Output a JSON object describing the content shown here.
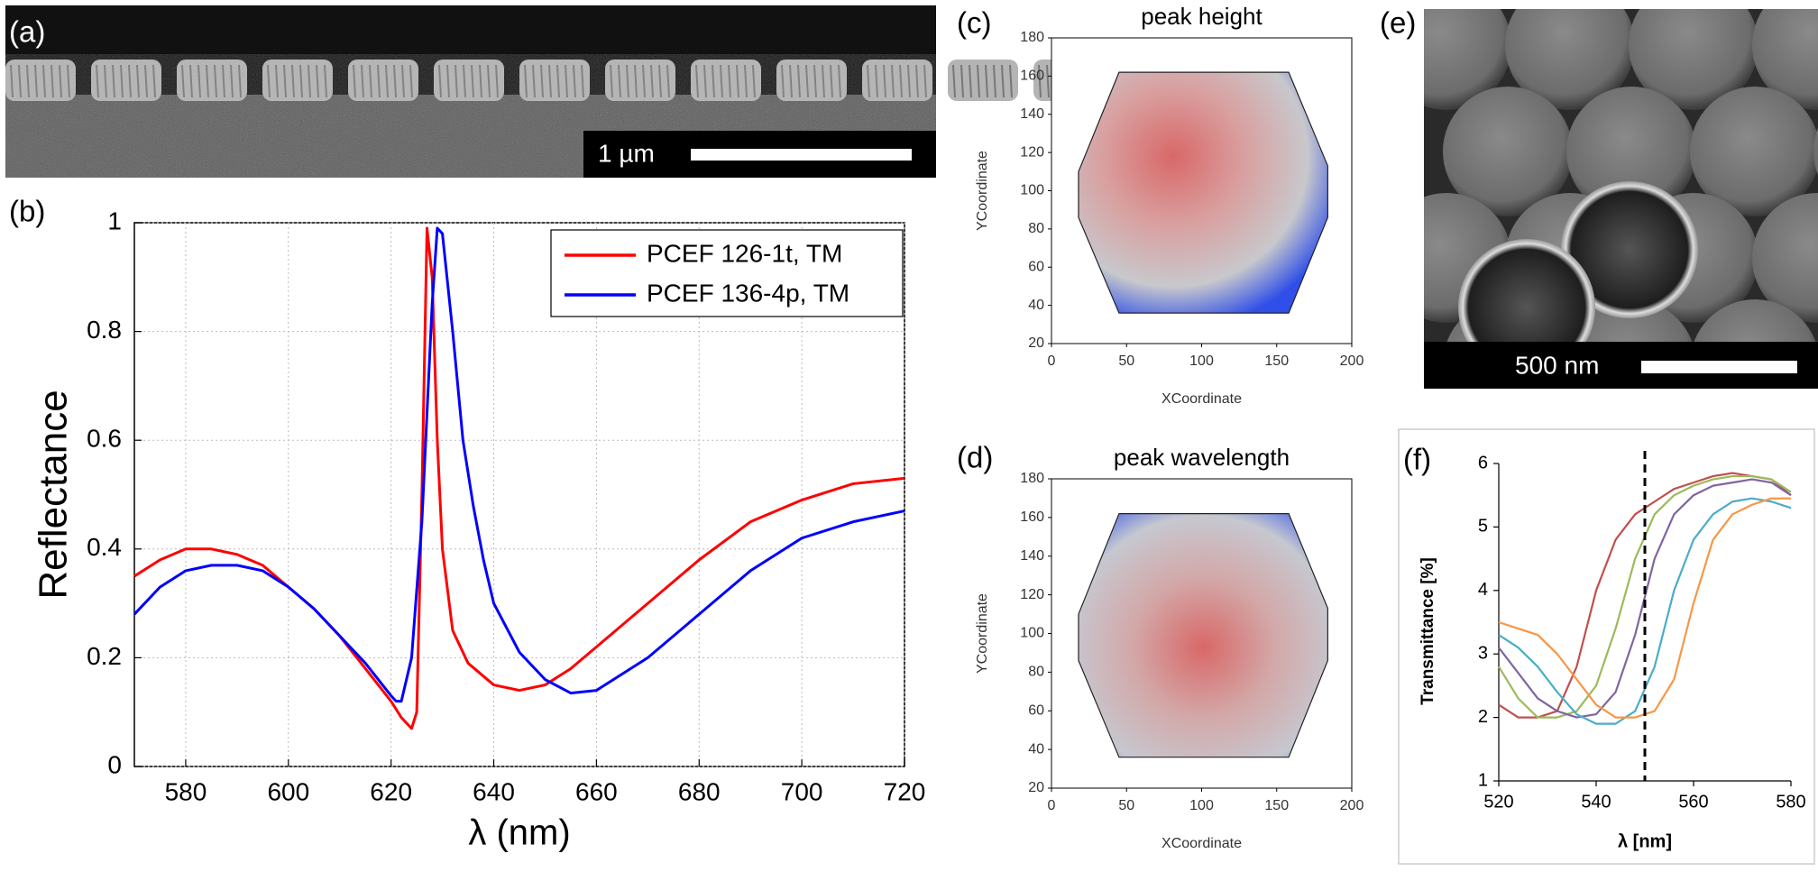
{
  "images": {
    "a": {
      "label": "(a)",
      "scale_bar": "1 µm"
    },
    "e": {
      "label": "(e)",
      "scale_bar": "500 nm"
    }
  },
  "chart_data": [
    {
      "type": "line",
      "panel_label": "(b)",
      "xlabel": "λ (nm)",
      "ylabel": "Reflectance",
      "xlim": [
        570,
        720
      ],
      "xticks": [
        580,
        600,
        620,
        640,
        660,
        680,
        700,
        720
      ],
      "ylim": [
        0,
        1
      ],
      "yticks": [
        0,
        0.2,
        0.4,
        0.6,
        0.8,
        1
      ],
      "grid": true,
      "legend": "upper right",
      "series": [
        {
          "name": "PCEF 126-1t, TM",
          "color": "#ff0000",
          "x": [
            570,
            575,
            580,
            585,
            590,
            595,
            600,
            605,
            610,
            615,
            620,
            622,
            624,
            625,
            626,
            627,
            628,
            629,
            630,
            632,
            635,
            640,
            645,
            650,
            655,
            660,
            670,
            680,
            690,
            700,
            710,
            720
          ],
          "values": [
            0.35,
            0.38,
            0.4,
            0.4,
            0.39,
            0.37,
            0.33,
            0.29,
            0.24,
            0.18,
            0.12,
            0.09,
            0.07,
            0.1,
            0.5,
            0.99,
            0.9,
            0.6,
            0.4,
            0.25,
            0.19,
            0.15,
            0.14,
            0.15,
            0.18,
            0.22,
            0.3,
            0.38,
            0.45,
            0.49,
            0.52,
            0.53
          ]
        },
        {
          "name": "PCEF 136-4p, TM",
          "color": "#0000ff",
          "x": [
            570,
            575,
            580,
            585,
            590,
            595,
            600,
            605,
            610,
            615,
            620,
            621,
            622,
            624,
            626,
            628,
            629,
            630,
            632,
            634,
            636,
            638,
            640,
            645,
            650,
            655,
            660,
            670,
            680,
            690,
            700,
            710,
            720
          ],
          "values": [
            0.28,
            0.33,
            0.36,
            0.37,
            0.37,
            0.36,
            0.33,
            0.29,
            0.24,
            0.19,
            0.13,
            0.12,
            0.12,
            0.2,
            0.45,
            0.85,
            0.99,
            0.98,
            0.8,
            0.6,
            0.48,
            0.38,
            0.3,
            0.21,
            0.16,
            0.135,
            0.14,
            0.2,
            0.28,
            0.36,
            0.42,
            0.45,
            0.47
          ]
        }
      ]
    },
    {
      "type": "heatmap",
      "panel_label": "(c)",
      "title": "peak height",
      "xlabel": "XCoordinate",
      "ylabel": "YCoordinate",
      "xlim": [
        0,
        200
      ],
      "xticks": [
        0,
        50,
        100,
        150,
        200
      ],
      "ylim": [
        20,
        180
      ],
      "yticks": [
        20,
        40,
        60,
        80,
        100,
        120,
        140,
        160,
        180
      ],
      "colormap": [
        "#d96868",
        "#d9a0a0",
        "#c8c8cc",
        "#2f4fe8"
      ],
      "outline": {
        "x": [
          45,
          158,
          184,
          184,
          158,
          45,
          18,
          18
        ],
        "y": [
          162,
          162,
          113,
          86,
          36,
          36,
          86,
          110
        ]
      }
    },
    {
      "type": "heatmap",
      "panel_label": "(d)",
      "title": "peak wavelength",
      "xlabel": "XCoordinate",
      "ylabel": "YCoordinate",
      "xlim": [
        0,
        200
      ],
      "xticks": [
        0,
        50,
        100,
        150,
        200
      ],
      "ylim": [
        20,
        180
      ],
      "yticks": [
        20,
        40,
        60,
        80,
        100,
        120,
        140,
        160,
        180
      ],
      "colormap": [
        "#d96868",
        "#d3a8a8",
        "#c6c8d0",
        "#2f4fe8"
      ],
      "outline": {
        "x": [
          45,
          158,
          184,
          184,
          158,
          45,
          18,
          18
        ],
        "y": [
          162,
          162,
          113,
          86,
          36,
          36,
          86,
          110
        ]
      }
    },
    {
      "type": "line",
      "panel_label": "(f)",
      "xlabel": "λ [nm]",
      "ylabel": "Transmittance [%]",
      "xlim": [
        520,
        580
      ],
      "xticks": [
        520,
        540,
        560,
        580
      ],
      "ylim": [
        1,
        6
      ],
      "yticks": [
        1,
        2,
        3,
        4,
        5,
        6
      ],
      "grid": false,
      "vline": 550,
      "x": [
        520,
        524,
        528,
        532,
        536,
        540,
        544,
        548,
        552,
        556,
        560,
        564,
        568,
        572,
        576,
        580
      ],
      "series": [
        {
          "color": "#c0504d",
          "values": [
            2.2,
            2.0,
            2.0,
            2.1,
            2.8,
            4.0,
            4.8,
            5.2,
            5.4,
            5.6,
            5.7,
            5.8,
            5.85,
            5.8,
            5.75,
            5.5
          ]
        },
        {
          "color": "#9bbb59",
          "values": [
            2.8,
            2.3,
            2.0,
            2.0,
            2.1,
            2.5,
            3.4,
            4.5,
            5.2,
            5.5,
            5.65,
            5.75,
            5.8,
            5.8,
            5.75,
            5.55
          ]
        },
        {
          "color": "#8064a2",
          "values": [
            3.1,
            2.7,
            2.3,
            2.1,
            2.0,
            2.05,
            2.4,
            3.3,
            4.5,
            5.2,
            5.5,
            5.65,
            5.7,
            5.75,
            5.7,
            5.5
          ]
        },
        {
          "color": "#4bacc6",
          "values": [
            3.3,
            3.1,
            2.8,
            2.4,
            2.05,
            1.9,
            1.9,
            2.1,
            2.8,
            4.0,
            4.8,
            5.2,
            5.4,
            5.45,
            5.4,
            5.3
          ]
        },
        {
          "color": "#f79646",
          "values": [
            3.5,
            3.4,
            3.3,
            3.0,
            2.6,
            2.2,
            2.0,
            2.0,
            2.1,
            2.6,
            3.8,
            4.8,
            5.2,
            5.35,
            5.45,
            5.45
          ]
        }
      ]
    }
  ]
}
